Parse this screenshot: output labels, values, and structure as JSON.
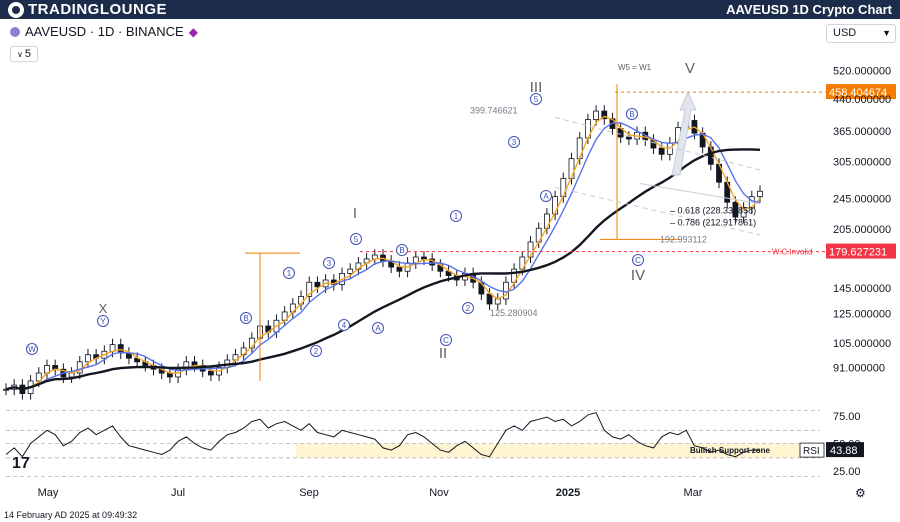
{
  "header": {
    "brand": "TradingLounge",
    "title": "AAVEUSD 1D Crypto Chart"
  },
  "symbol_bar": {
    "symbol": "AAVEUSD · 1D · BINANCE",
    "interval": "5",
    "currency": "USD"
  },
  "footer": {
    "date": "14 February AD 2025 at 09:49:32"
  },
  "colors": {
    "candle": "#131722",
    "ema_fast": "#f5a623",
    "ema_mid": "#5b73e8",
    "ma_slow": "#131722",
    "invalid": "#f23645",
    "target": "#f57c00"
  },
  "chart_data": {
    "type": "line",
    "xlabel": "",
    "ylabel": "",
    "x_ticks": [
      "May",
      "Jul",
      "Sep",
      "Nov",
      "2025",
      "Mar"
    ],
    "y_ticks": [
      "520.000000",
      "440.000000",
      "365.000000",
      "305.000000",
      "245.000000",
      "205.000000",
      "145.000000",
      "125.000000",
      "105.000000",
      "91.000000"
    ],
    "y_scale": "log",
    "price_tags": [
      {
        "label": "458.404674",
        "value": 458.404674,
        "kind": "target"
      },
      {
        "label": "179.627231",
        "value": 179.627231,
        "kind": "invalid"
      }
    ],
    "fib_labels": [
      {
        "text": "0.618 (228.338858)",
        "value": 228.338858
      },
      {
        "text": "0.786 (212.917861)",
        "value": 212.917861
      }
    ],
    "level_labels": [
      {
        "text": "399.746621",
        "value": 399.746621
      },
      {
        "text": "192.993112",
        "value": 192.993112
      },
      {
        "text": "125.280904",
        "value": 125.280904
      }
    ],
    "annotations": {
      "w5": "W5 = W1",
      "invalid": "W.C.Invalid",
      "support": "Bullish Support zone",
      "waves_major": [
        "I",
        "II",
        "III",
        "IV",
        "V"
      ],
      "waves_minor": [
        "1",
        "2",
        "3",
        "4",
        "5"
      ],
      "waves_corrective": [
        "W",
        "X",
        "Y",
        "A",
        "B",
        "C"
      ]
    },
    "series": [
      {
        "name": "",
        "values": [
          80,
          82,
          78,
          84,
          88,
          92,
          90,
          86,
          88,
          94,
          98,
          96,
          100,
          104,
          99,
          96,
          94,
          92,
          90,
          88,
          86,
          90,
          94,
          92,
          89,
          87,
          91,
          95,
          98,
          102,
          108,
          116,
          112,
          120,
          126,
          132,
          138,
          150,
          146,
          152,
          148,
          158,
          162,
          168,
          172,
          176,
          170,
          164,
          160,
          168,
          174,
          172,
          166,
          160,
          156,
          152,
          158,
          150,
          140,
          132,
          136,
          150,
          162,
          174,
          190,
          206,
          224,
          248,
          276,
          310,
          350,
          390,
          410,
          392,
          370,
          352,
          348,
          362,
          346,
          330,
          318,
          340,
          372,
          388,
          360,
          332,
          300,
          270,
          240,
          220,
          232,
          248,
          256
        ]
      }
    ],
    "x_range": [
      0,
      92
    ],
    "rsi": {
      "label": "RSI",
      "value": "43.88",
      "y_ticks": [
        "75.00",
        "50.00",
        "25.00"
      ],
      "values": [
        40,
        46,
        38,
        50,
        56,
        62,
        58,
        48,
        52,
        60,
        64,
        58,
        62,
        66,
        56,
        48,
        46,
        44,
        42,
        40,
        44,
        52,
        56,
        50,
        46,
        44,
        52,
        58,
        60,
        64,
        70,
        72,
        64,
        68,
        70,
        66,
        62,
        68,
        60,
        58,
        56,
        62,
        60,
        58,
        56,
        54,
        46,
        44,
        48,
        58,
        60,
        56,
        50,
        44,
        42,
        48,
        52,
        46,
        40,
        38,
        50,
        62,
        66,
        62,
        70,
        72,
        74,
        70,
        72,
        66,
        70,
        76,
        78,
        62,
        56,
        54,
        58,
        52,
        48,
        46,
        56,
        60,
        58,
        62,
        48,
        46,
        42,
        44,
        40,
        38,
        42,
        44,
        43.88
      ]
    }
  }
}
